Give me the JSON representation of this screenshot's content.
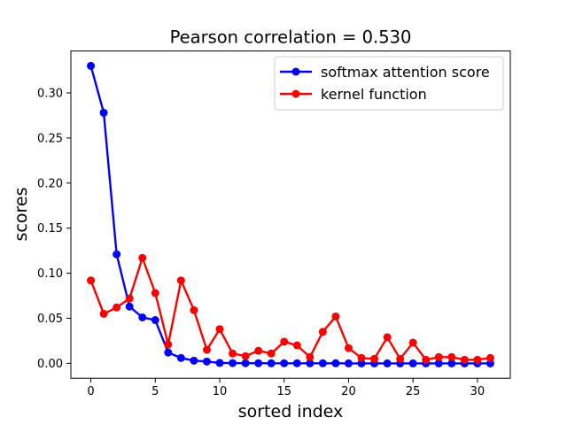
{
  "chart_data": {
    "type": "line",
    "title": "Pearson correlation =  0.530",
    "xlabel": "sorted index",
    "ylabel": "scores",
    "xlim": [
      -1.55,
      32.55
    ],
    "ylim": [
      -0.0165,
      0.3465
    ],
    "xticks": [
      0,
      5,
      10,
      15,
      20,
      25,
      30
    ],
    "xtick_labels": [
      "0",
      "5",
      "10",
      "15",
      "20",
      "25",
      "30"
    ],
    "yticks": [
      0.0,
      0.05,
      0.1,
      0.15,
      0.2,
      0.25,
      0.3
    ],
    "ytick_labels": [
      "0.00",
      "0.05",
      "0.10",
      "0.15",
      "0.20",
      "0.25",
      "0.30"
    ],
    "grid": false,
    "legend_position": "top-right",
    "x": [
      0,
      1,
      2,
      3,
      4,
      5,
      6,
      7,
      8,
      9,
      10,
      11,
      12,
      13,
      14,
      15,
      16,
      17,
      18,
      19,
      20,
      21,
      22,
      23,
      24,
      25,
      26,
      27,
      28,
      29,
      30,
      31
    ],
    "series": [
      {
        "name": "softmax attention score",
        "color": "#0000ff",
        "values": [
          0.33,
          0.278,
          0.121,
          0.063,
          0.051,
          0.048,
          0.012,
          0.006,
          0.003,
          0.002,
          0.0005,
          0.0003,
          0.0002,
          0.0002,
          0.0001,
          0.0001,
          0.0001,
          0.0001,
          0.0001,
          0.0001,
          0.0,
          0.0,
          0.0,
          0.0,
          0.0,
          0.0,
          0.0,
          0.0,
          0.0,
          0.0,
          0.0,
          0.0
        ]
      },
      {
        "name": "kernel function",
        "color": "#ff0000",
        "values": [
          0.092,
          0.055,
          0.062,
          0.072,
          0.117,
          0.078,
          0.021,
          0.092,
          0.059,
          0.015,
          0.038,
          0.011,
          0.008,
          0.014,
          0.011,
          0.024,
          0.02,
          0.007,
          0.035,
          0.052,
          0.017,
          0.006,
          0.005,
          0.029,
          0.005,
          0.023,
          0.004,
          0.007,
          0.007,
          0.004,
          0.004,
          0.006
        ]
      }
    ]
  }
}
